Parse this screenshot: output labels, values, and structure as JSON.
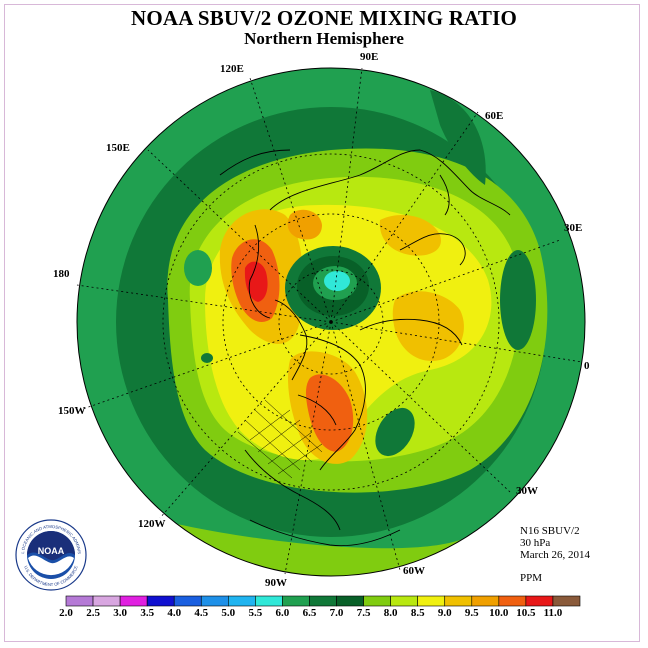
{
  "title": "NOAA SBUV/2 OZONE MIXING RATIO",
  "subtitle": "Northern Hemisphere",
  "longitude_labels": {
    "e90": "90E",
    "e120": "120E",
    "e60": "60E",
    "e150": "150E",
    "e30": "30E",
    "d180": "180",
    "d0": "0",
    "w150": "150W",
    "w30": "30W",
    "w120": "120W",
    "w60": "60W",
    "w90": "90W"
  },
  "info": {
    "instrument": "N16 SBUV/2",
    "level": "30 hPa",
    "date": "March 26, 2014",
    "units": "PPM"
  },
  "logo": {
    "name": "NOAA",
    "ring_text_top": "NATIONAL OCEANIC AND ATMOSPHERIC ADMINISTRATION",
    "ring_text_bottom": "U.S. DEPARTMENT OF COMMERCE"
  },
  "colorbar": {
    "labels": [
      "2.0",
      "2.5",
      "3.0",
      "3.5",
      "4.0",
      "4.5",
      "5.0",
      "5.5",
      "6.0",
      "6.5",
      "7.0",
      "7.5",
      "8.0",
      "8.5",
      "9.0",
      "9.5",
      "10.0",
      "10.5",
      "11.0"
    ],
    "colors": [
      "#b57ad6",
      "#d8a6e0",
      "#e020e0",
      "#1010d0",
      "#1a5fe0",
      "#1e90e8",
      "#20b4f0",
      "#30e8d8",
      "#20a050",
      "#107838",
      "#086028",
      "#80cc10",
      "#b8e810",
      "#f0f010",
      "#f0c000",
      "#f0a000",
      "#f06010",
      "#e81818",
      "#8a5a3a"
    ]
  },
  "legend_colors": {
    "very_dark_green": "#086028",
    "dark_green": "#107838",
    "green": "#20a050",
    "lime": "#80cc10",
    "yellow_green": "#b8e810",
    "yellow": "#f0f010",
    "gold": "#f0c000",
    "orange": "#f0a000",
    "red_orange": "#f06010",
    "red": "#e81818",
    "cyan": "#30e8d8"
  }
}
